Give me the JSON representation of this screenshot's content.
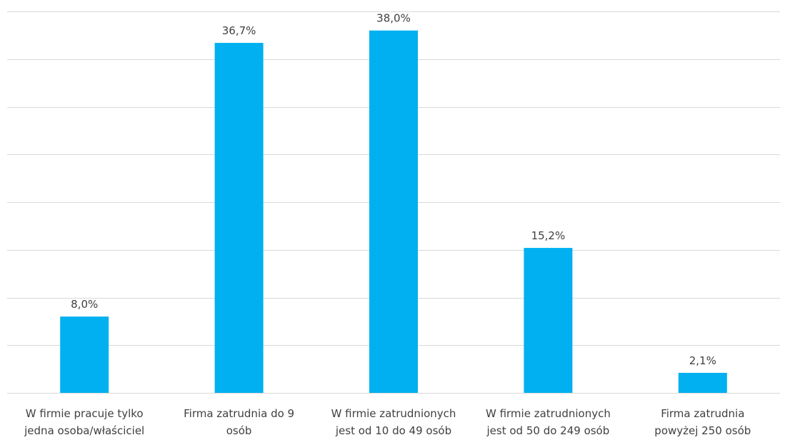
{
  "chart_data": {
    "type": "bar",
    "categories": [
      [
        "W firmie pracuje tylko",
        "jedna osoba/właściciel"
      ],
      [
        "Firma zatrudnia do 9",
        "osób"
      ],
      [
        "W firmie zatrudnionych",
        "jest od 10 do 49 osób"
      ],
      [
        "W firmie zatrudnionych",
        "jest od 50 do 249 osób"
      ],
      [
        "Firma zatrudnia",
        "powyżej 250 osób"
      ]
    ],
    "values": [
      8.0,
      36.7,
      38.0,
      15.2,
      2.1
    ],
    "data_labels": [
      "8,0%",
      "36,7%",
      "38,0%",
      "15,2%",
      "2,1%"
    ],
    "ylim": [
      0,
      40
    ],
    "grid": true,
    "colors": {
      "bar": "#00b0f0",
      "grid": "#d9d9d9",
      "text": "#404040"
    }
  }
}
